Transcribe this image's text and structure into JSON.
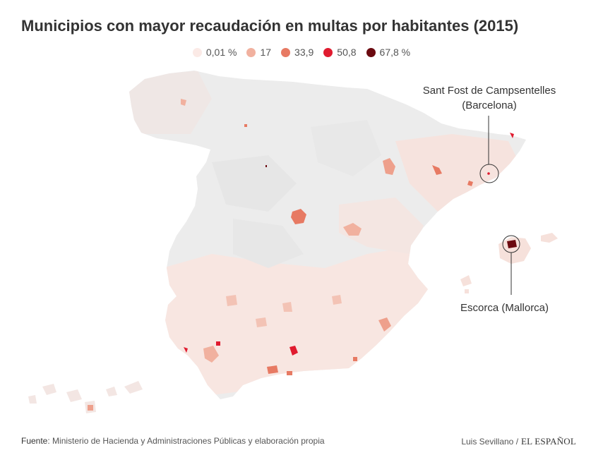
{
  "title": "Municipios con mayor recaudación en multas por habitantes (2015)",
  "legend": [
    {
      "label": "0,01 %",
      "color": "#fbeae6"
    },
    {
      "label": "17",
      "color": "#f1b19f"
    },
    {
      "label": "33,9",
      "color": "#e77a63"
    },
    {
      "label": "50,8",
      "color": "#e01b2f"
    },
    {
      "label": "67,8 %",
      "color": "#6b0a10"
    }
  ],
  "annotations": {
    "sant_fost_line1": "Sant Fost de Campsentelles",
    "sant_fost_line2": "(Barcelona)",
    "escorca": "Escorca (Mallorca)"
  },
  "footer": {
    "source_label": "Fuente",
    "source_text": ": Ministerio de Hacienda y Administraciones Públicas y elaboración propia",
    "author": "Luis Sevillano /",
    "brand": "EL ESPAÑOL"
  },
  "colors": {
    "land_base": "#ececec",
    "land_light": "#f8e4de",
    "stroke": "#ffffff"
  }
}
